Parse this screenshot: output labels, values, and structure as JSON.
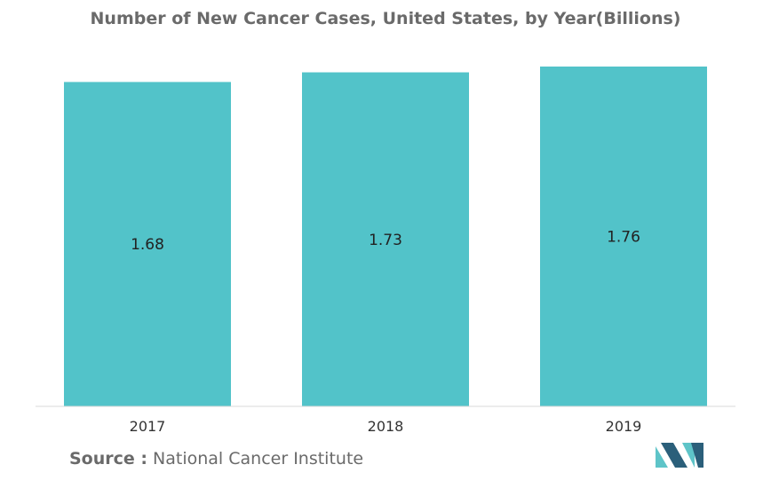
{
  "title": "Number of New Cancer Cases, United States, by Year(Billions)",
  "source": {
    "prefix": "Source :",
    "text": " National Cancer Institute"
  },
  "colors": {
    "bar": "#52c3c9",
    "logo_dark": "#2b5f7a",
    "logo_light": "#5ec4c8"
  },
  "chart_data": {
    "type": "bar",
    "categories": [
      "2017",
      "2018",
      "2019"
    ],
    "values": [
      1.68,
      1.73,
      1.76
    ],
    "data_labels": [
      "1.68",
      "1.73",
      "1.76"
    ],
    "title": "Number of New Cancer Cases, United States, by Year(Billions)",
    "xlabel": "",
    "ylabel": "",
    "ylim": [
      0,
      1.76
    ],
    "grid": false,
    "legend": "none"
  }
}
